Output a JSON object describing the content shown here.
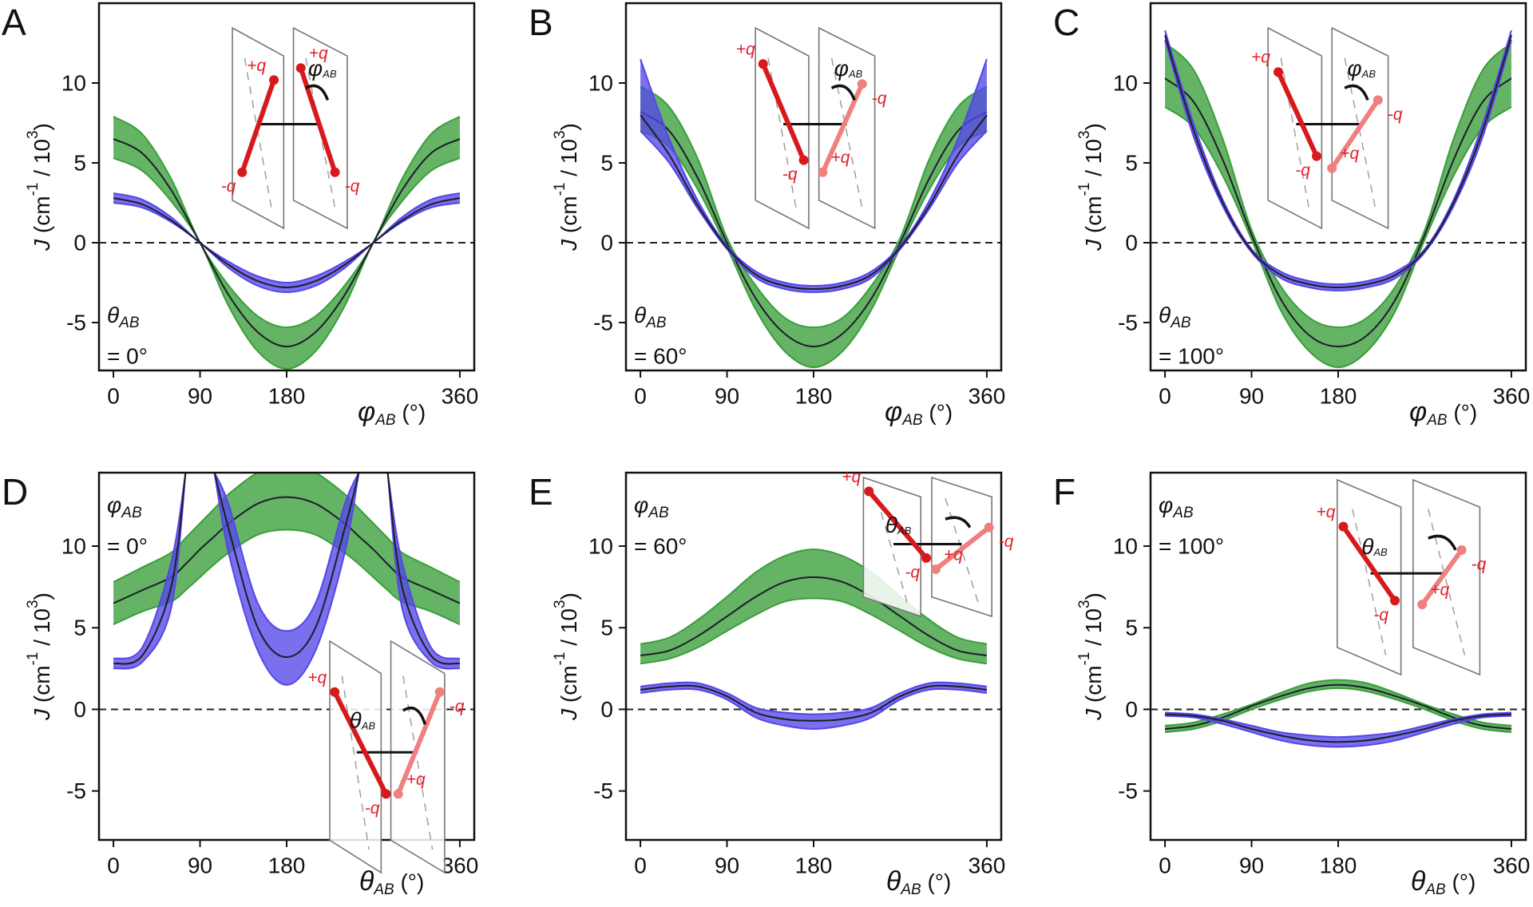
{
  "chart_data": [
    {
      "type": "line",
      "panel_label": "A",
      "ylabel_parts": [
        "J",
        " (cm",
        "-1",
        " / 10",
        "3",
        ")"
      ],
      "xlabel_parts": [
        "φ",
        "AB",
        " (°)"
      ],
      "annotation_parts": [
        "θ",
        "AB"
      ],
      "annotation_value": "= 0°",
      "x": [
        0,
        30,
        60,
        90,
        120,
        150,
        180,
        210,
        240,
        270,
        300,
        330,
        360
      ],
      "xlim": [
        -15,
        375
      ],
      "xticks": [
        0,
        90,
        180,
        360
      ],
      "ylim": [
        -8,
        15
      ],
      "yticks": [
        -5,
        0,
        5,
        10
      ],
      "hline": 0,
      "series": [
        {
          "color": "#3a9e3a",
          "values": [
            6.5,
            5.6,
            3.3,
            0,
            -3.3,
            -5.6,
            -6.5,
            -5.6,
            -3.3,
            0,
            3.3,
            5.6,
            6.5
          ],
          "upper": [
            7.9,
            6.8,
            4.0,
            0,
            -2.7,
            -4.6,
            -5.3,
            -4.6,
            -2.7,
            0,
            4.0,
            6.8,
            7.9
          ],
          "lower": [
            5.3,
            4.5,
            2.6,
            0,
            -4.0,
            -6.8,
            -7.9,
            -6.8,
            -4.0,
            0,
            2.6,
            4.5,
            5.3
          ]
        },
        {
          "color": "#5546e8",
          "values": [
            2.8,
            2.4,
            1.4,
            0,
            -1.4,
            -2.4,
            -2.8,
            -2.4,
            -1.4,
            0,
            1.4,
            2.4,
            2.8
          ],
          "upper": [
            3.1,
            2.7,
            1.6,
            0,
            -1.2,
            -2.1,
            -2.5,
            -2.1,
            -1.2,
            0,
            1.6,
            2.7,
            3.1
          ],
          "lower": [
            2.5,
            2.2,
            1.3,
            0,
            -1.6,
            -2.7,
            -3.1,
            -2.7,
            -1.6,
            0,
            1.3,
            2.2,
            2.5
          ]
        }
      ],
      "inset_labels": [
        "+q",
        "-q",
        "+q",
        "-q"
      ],
      "inset_angle_parts": [
        "φ",
        "AB"
      ]
    },
    {
      "type": "line",
      "panel_label": "B",
      "ylabel_parts": [
        "J",
        " (cm",
        "-1",
        " / 10",
        "3",
        ")"
      ],
      "xlabel_parts": [
        "φ",
        "AB",
        " (°)"
      ],
      "annotation_parts": [
        "θ",
        "AB"
      ],
      "annotation_value": "= 60°",
      "x": [
        0,
        30,
        60,
        90,
        120,
        150,
        180,
        210,
        240,
        270,
        300,
        330,
        360
      ],
      "xlim": [
        -15,
        375
      ],
      "xticks": [
        0,
        90,
        180,
        360
      ],
      "ylim": [
        -8,
        15
      ],
      "yticks": [
        -5,
        0,
        5,
        10
      ],
      "hline": 0,
      "series": [
        {
          "color": "#3a9e3a",
          "values": [
            8.2,
            7.0,
            4.0,
            0,
            -3.5,
            -5.7,
            -6.5,
            -5.7,
            -3.5,
            0,
            4.0,
            7.0,
            8.2
          ],
          "upper": [
            9.8,
            8.5,
            5.2,
            0.3,
            -2.7,
            -4.7,
            -5.3,
            -4.7,
            -2.7,
            0.3,
            5.2,
            8.5,
            9.8
          ],
          "lower": [
            7.0,
            6.0,
            3.3,
            -0.3,
            -4.2,
            -6.8,
            -7.8,
            -6.8,
            -4.2,
            -0.3,
            3.3,
            6.0,
            7.0
          ]
        },
        {
          "color": "#5546e8",
          "values": [
            8.0,
            5.5,
            2.3,
            -0.3,
            -2.0,
            -2.7,
            -2.9,
            -2.7,
            -2.0,
            -0.3,
            2.3,
            5.5,
            8.0
          ],
          "upper": [
            11.5,
            6.5,
            2.6,
            -0.2,
            -1.8,
            -2.5,
            -2.7,
            -2.5,
            -1.8,
            -0.2,
            2.6,
            6.5,
            11.5
          ],
          "lower": [
            7.0,
            5.0,
            2.1,
            -0.4,
            -2.2,
            -2.9,
            -3.1,
            -2.9,
            -2.2,
            -0.4,
            2.1,
            5.0,
            7.0
          ]
        }
      ],
      "inset_labels": [
        "+q",
        "-q",
        "+q",
        "-q"
      ],
      "inset_angle_parts": [
        "φ",
        "AB"
      ]
    },
    {
      "type": "line",
      "panel_label": "C",
      "ylabel_parts": [
        "J",
        " (cm",
        "-1",
        " / 10",
        "3",
        ")"
      ],
      "xlabel_parts": [
        "φ",
        "AB",
        " (°)"
      ],
      "annotation_parts": [
        "θ",
        "AB"
      ],
      "annotation_value": "= 100°",
      "x": [
        0,
        30,
        60,
        90,
        120,
        150,
        180,
        210,
        240,
        270,
        300,
        330,
        360
      ],
      "xlim": [
        -15,
        375
      ],
      "xticks": [
        0,
        90,
        180,
        360
      ],
      "ylim": [
        -8,
        15
      ],
      "yticks": [
        -5,
        0,
        5,
        10
      ],
      "hline": 0,
      "series": [
        {
          "color": "#3a9e3a",
          "values": [
            10.3,
            8.8,
            5.2,
            0.5,
            -3.5,
            -5.8,
            -6.5,
            -5.8,
            -3.5,
            0.5,
            5.2,
            8.8,
            10.3
          ],
          "upper": [
            12.5,
            10.8,
            6.5,
            0.8,
            -2.7,
            -4.7,
            -5.3,
            -4.7,
            -2.7,
            0.8,
            6.5,
            10.8,
            12.5
          ],
          "lower": [
            8.5,
            7.2,
            4.2,
            0.2,
            -4.2,
            -6.8,
            -7.8,
            -6.8,
            -4.2,
            0.2,
            4.2,
            7.2,
            8.5
          ]
        },
        {
          "color": "#5546e8",
          "values": [
            13.0,
            7.0,
            2.5,
            -0.5,
            -2.0,
            -2.6,
            -2.8,
            -2.6,
            -2.0,
            -0.5,
            2.5,
            7.0,
            13.0
          ],
          "upper": [
            13.3,
            7.4,
            2.7,
            -0.4,
            -1.8,
            -2.4,
            -2.6,
            -2.4,
            -1.8,
            -0.4,
            2.7,
            7.4,
            13.3
          ],
          "lower": [
            12.7,
            6.6,
            2.3,
            -0.6,
            -2.2,
            -2.8,
            -3.0,
            -2.8,
            -2.2,
            -0.6,
            2.3,
            6.6,
            12.7
          ]
        }
      ],
      "inset_labels": [
        "+q",
        "-q",
        "+q",
        "-q"
      ],
      "inset_angle_parts": [
        "φ",
        "AB"
      ]
    },
    {
      "type": "line",
      "panel_label": "D",
      "ylabel_parts": [
        "J",
        " (cm",
        "-1",
        " / 10",
        "3",
        ")"
      ],
      "xlabel_parts": [
        "θ",
        "AB",
        " (°)"
      ],
      "annotation_parts": [
        "φ",
        "AB"
      ],
      "annotation_value": "= 0°",
      "x": [
        0,
        30,
        60,
        75,
        90,
        105,
        120,
        150,
        180,
        210,
        240,
        255,
        270,
        285,
        300,
        330,
        360
      ],
      "xlim": [
        -15,
        375
      ],
      "xticks": [
        0,
        90,
        180,
        360
      ],
      "ylim": [
        -8,
        14.5
      ],
      "yticks": [
        -5,
        0,
        5,
        10
      ],
      "hline": 0,
      "series": [
        {
          "color": "#3a9e3a",
          "values": [
            6.5,
            7.3,
            8.1,
            8.9,
            9.8,
            10.6,
            11.4,
            12.6,
            13.0,
            12.6,
            11.4,
            10.6,
            9.8,
            8.9,
            8.1,
            7.3,
            6.5
          ],
          "upper": [
            7.8,
            8.7,
            9.6,
            10.5,
            11.4,
            12.3,
            13.2,
            14.5,
            15.0,
            14.5,
            13.2,
            12.3,
            11.4,
            10.5,
            9.6,
            8.7,
            7.8
          ],
          "lower": [
            5.2,
            6.0,
            6.6,
            7.3,
            8.1,
            8.9,
            9.6,
            10.7,
            11.0,
            10.7,
            9.6,
            8.9,
            8.1,
            7.3,
            6.6,
            6.0,
            5.2
          ]
        },
        {
          "color": "#5546e8",
          "values": [
            2.8,
            3.3,
            7.5,
            14.5,
            null,
            14.5,
            11.0,
            5.0,
            3.2,
            5.0,
            11.0,
            14.5,
            null,
            14.5,
            7.5,
            3.3,
            2.8
          ],
          "upper": [
            3.1,
            3.8,
            9.0,
            14.5,
            null,
            14.5,
            12.5,
            6.5,
            4.8,
            6.5,
            12.5,
            14.5,
            null,
            14.5,
            9.0,
            3.8,
            3.1
          ],
          "lower": [
            2.5,
            2.9,
            6.2,
            14.5,
            null,
            14.5,
            9.5,
            3.6,
            1.5,
            3.6,
            9.5,
            14.5,
            null,
            14.5,
            6.2,
            2.9,
            2.5
          ]
        }
      ],
      "inset_labels": [
        "+q",
        "-q",
        "+q",
        "-q"
      ],
      "inset_angle_parts": [
        "θ",
        "AB"
      ]
    },
    {
      "type": "line",
      "panel_label": "E",
      "ylabel_parts": [
        "J",
        " (cm",
        "-1",
        " / 10",
        "3",
        ")"
      ],
      "xlabel_parts": [
        "θ",
        "AB",
        " (°)"
      ],
      "annotation_parts": [
        "φ",
        "AB"
      ],
      "annotation_value": "= 60°",
      "x": [
        0,
        30,
        60,
        90,
        120,
        150,
        180,
        210,
        240,
        270,
        300,
        330,
        360
      ],
      "xlim": [
        -15,
        375
      ],
      "xticks": [
        0,
        90,
        180,
        360
      ],
      "ylim": [
        -8,
        14.5
      ],
      "yticks": [
        -5,
        0,
        5,
        10
      ],
      "hline": 0,
      "series": [
        {
          "color": "#3a9e3a",
          "values": [
            3.3,
            3.6,
            4.5,
            5.7,
            6.9,
            7.8,
            8.1,
            7.8,
            6.9,
            5.7,
            4.5,
            3.6,
            3.3
          ],
          "upper": [
            4.0,
            4.4,
            5.5,
            6.9,
            8.4,
            9.4,
            9.8,
            9.4,
            8.4,
            6.9,
            5.5,
            4.4,
            4.0
          ],
          "lower": [
            2.8,
            3.1,
            3.8,
            4.8,
            5.8,
            6.6,
            6.8,
            6.6,
            5.8,
            4.8,
            3.8,
            3.1,
            2.8
          ]
        },
        {
          "color": "#5546e8",
          "values": [
            1.2,
            1.4,
            1.4,
            0.8,
            -0.2,
            -0.6,
            -0.7,
            -0.6,
            -0.2,
            0.8,
            1.4,
            1.4,
            1.2
          ],
          "upper": [
            1.4,
            1.6,
            1.6,
            1.0,
            0.1,
            -0.2,
            -0.3,
            -0.2,
            0.1,
            1.0,
            1.6,
            1.6,
            1.4
          ],
          "lower": [
            1.0,
            1.2,
            1.2,
            0.6,
            -0.5,
            -1.0,
            -1.2,
            -1.0,
            -0.5,
            0.6,
            1.2,
            1.2,
            1.0
          ]
        }
      ],
      "inset_labels": [
        "+q",
        "-q",
        "+q",
        "-q"
      ],
      "inset_angle_parts": [
        "θ",
        "AB"
      ]
    },
    {
      "type": "line",
      "panel_label": "F",
      "ylabel_parts": [
        "J",
        " (cm",
        "-1",
        " / 10",
        "3",
        ")"
      ],
      "xlabel_parts": [
        "θ",
        "AB",
        " (°)"
      ],
      "annotation_parts": [
        "φ",
        "AB"
      ],
      "annotation_value": "= 100°",
      "x": [
        0,
        30,
        60,
        90,
        120,
        150,
        180,
        210,
        240,
        270,
        300,
        330,
        360
      ],
      "xlim": [
        -15,
        375
      ],
      "xticks": [
        0,
        90,
        180,
        360
      ],
      "ylim": [
        -8,
        14.5
      ],
      "yticks": [
        -5,
        0,
        5,
        10
      ],
      "hline": 0,
      "series": [
        {
          "color": "#3a9e3a",
          "values": [
            -1.2,
            -1.0,
            -0.5,
            0.2,
            0.8,
            1.3,
            1.5,
            1.3,
            0.8,
            0.2,
            -0.5,
            -1.0,
            -1.2
          ],
          "upper": [
            -1.0,
            -0.8,
            -0.3,
            0.3,
            1.0,
            1.6,
            1.8,
            1.6,
            1.0,
            0.3,
            -0.3,
            -0.8,
            -1.0
          ],
          "lower": [
            -1.4,
            -1.2,
            -0.7,
            0.0,
            0.6,
            1.1,
            1.3,
            1.1,
            0.6,
            0.0,
            -0.7,
            -1.2,
            -1.4
          ]
        },
        {
          "color": "#5546e8",
          "values": [
            -0.3,
            -0.4,
            -0.7,
            -1.2,
            -1.6,
            -1.9,
            -2.0,
            -1.9,
            -1.6,
            -1.2,
            -0.7,
            -0.4,
            -0.3
          ],
          "upper": [
            -0.2,
            -0.3,
            -0.6,
            -1.0,
            -1.4,
            -1.6,
            -1.7,
            -1.6,
            -1.4,
            -1.0,
            -0.6,
            -0.3,
            -0.2
          ],
          "lower": [
            -0.4,
            -0.5,
            -0.9,
            -1.4,
            -1.9,
            -2.2,
            -2.3,
            -2.2,
            -1.9,
            -1.4,
            -0.9,
            -0.5,
            -0.4
          ]
        }
      ],
      "inset_labels": [
        "+q",
        "-q",
        "+q",
        "-q"
      ],
      "inset_angle_parts": [
        "θ",
        "AB"
      ]
    }
  ]
}
